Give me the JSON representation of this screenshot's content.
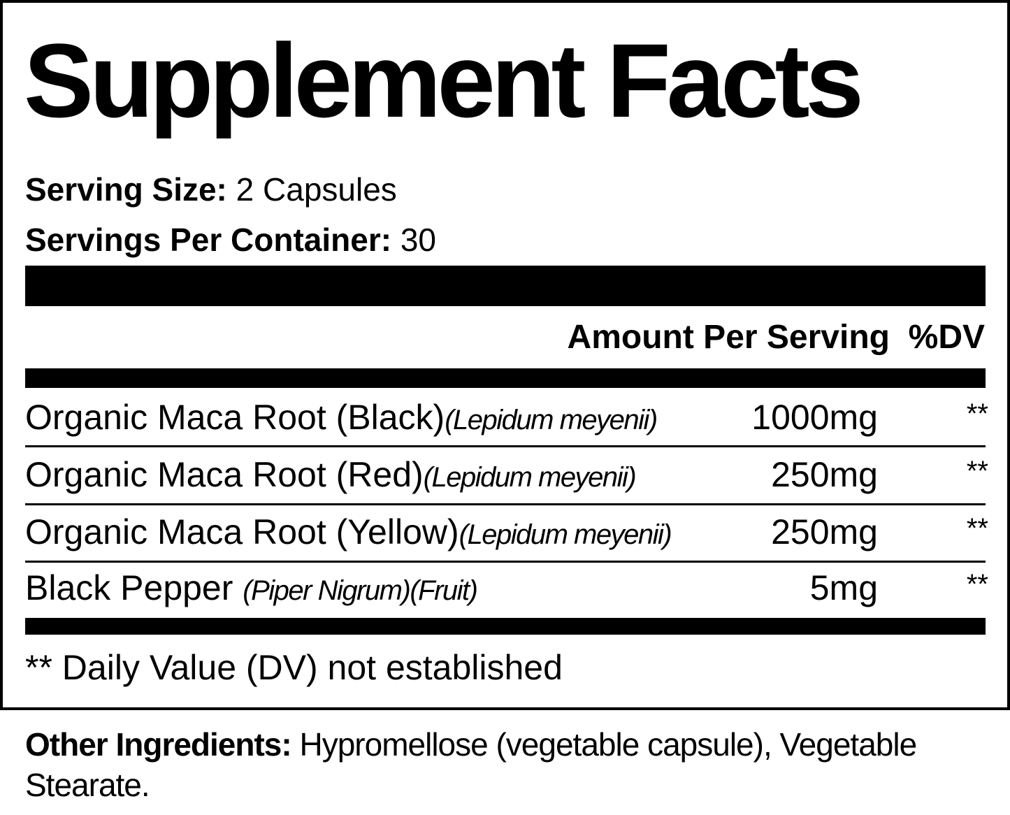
{
  "title": "Supplement Facts",
  "serving_size_label": "Serving Size:",
  "serving_size": "2 Capsules",
  "servings_label": "Servings Per Container:",
  "servings": "30",
  "header": {
    "amount": "Amount Per Serving",
    "dv": "%DV"
  },
  "rows": [
    {
      "name": "Organic Maca Root (Black)",
      "latin": "(Lepidum meyenii)",
      "amount": "1000mg",
      "dv": "**"
    },
    {
      "name": "Organic Maca Root (Red)",
      "latin": "(Lepidum meyenii)",
      "amount": "250mg",
      "dv": "**"
    },
    {
      "name": "Organic Maca Root (Yellow)",
      "latin": "(Lepidum meyenii)",
      "amount": "250mg",
      "dv": "**"
    },
    {
      "name": "Black Pepper ",
      "latin": "(Piper Nigrum)(Fruit)",
      "amount": "5mg",
      "dv": "**"
    }
  ],
  "footnote": "** Daily Value (DV) not established",
  "other_label": "Other Ingredients:",
  "other": " Hypromellose (vegetable capsule), Vegetable Stearate."
}
